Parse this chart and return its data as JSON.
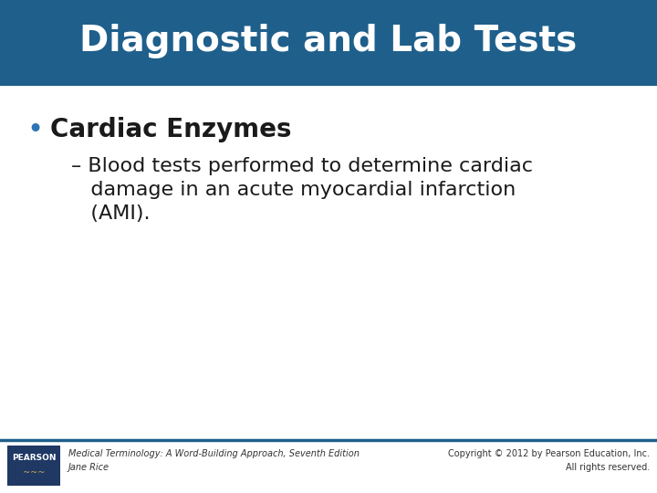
{
  "title": "Diagnostic and Lab Tests",
  "title_color": "#ffffff",
  "title_bg_color": "#1f5f8b",
  "title_fontsize": 28,
  "bg_color": "#ffffff",
  "bullet_point": "Cardiac Enzymes",
  "bullet_color": "#1a1a1a",
  "bullet_marker_color": "#2e75b6",
  "bullet_fontsize": 20,
  "sub_bullet_color": "#1a1a1a",
  "sub_bullet_fontsize": 16,
  "sub_lines": [
    "– Blood tests performed to determine cardiac",
    "   damage in an acute myocardial infarction",
    "   (AMI)."
  ],
  "footer_left_line1": "Medical Terminology: A Word-Building Approach, Seventh Edition",
  "footer_left_line2": "Jane Rice",
  "footer_right_line1": "Copyright © 2012 by Pearson Education, Inc.",
  "footer_right_line2": "All rights reserved.",
  "footer_color": "#333333",
  "footer_fontsize": 7,
  "separator_line_color": "#1f5f8b",
  "pearson_box_color": "#1f3864",
  "pearson_text": "PEARSON",
  "pearson_accent_color": "#c9a84c"
}
